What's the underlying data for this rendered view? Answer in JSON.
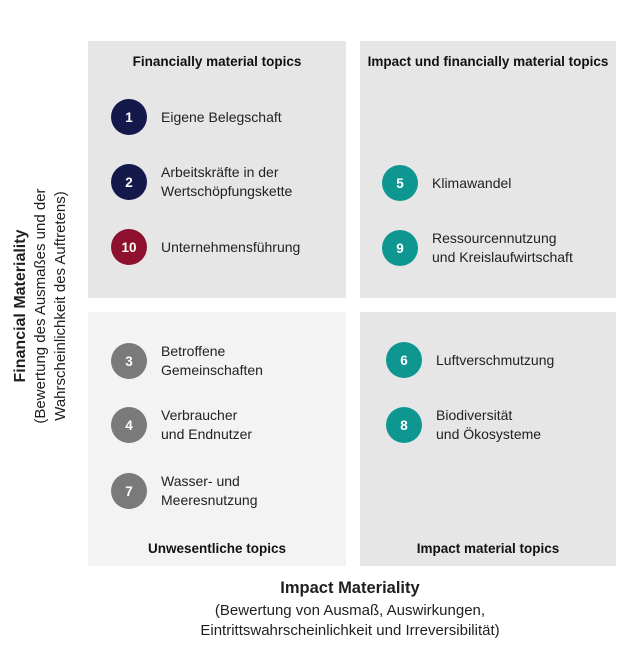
{
  "colors": {
    "navy": "#14184a",
    "crimson": "#8e1230",
    "teal": "#0e9690",
    "gray": "#7a7a7a",
    "quad_dark": "#e6e6e6",
    "quad_light": "#f3f3f3"
  },
  "y_axis": {
    "title": "Financial Materiality",
    "subtitle": "(Bewertung des Ausmaßes und der\nWahrscheinlichkeit des Auftretens)"
  },
  "x_axis": {
    "title": "Impact Materiality",
    "subtitle": "(Bewertung von Ausmaß, Auswirkungen,\nEintrittswahrscheinlichkeit und Irreversibilität)"
  },
  "quadrants": {
    "top_left": {
      "title": "Financially material topics",
      "items": [
        {
          "number": "1",
          "label": "Eigene Belegschaft",
          "color": "#14184a"
        },
        {
          "number": "2",
          "label": "Arbeitskräfte in der\nWertschöpfungskette",
          "color": "#14184a"
        },
        {
          "number": "10",
          "label": "Unternehmensführung",
          "color": "#8e1230"
        }
      ]
    },
    "top_right": {
      "title": "Impact und financially\nmaterial topics",
      "items": [
        {
          "number": "5",
          "label": "Klimawandel",
          "color": "#0e9690"
        },
        {
          "number": "9",
          "label": "Ressourcennutzung\nund Kreislaufwirtschaft",
          "color": "#0e9690"
        }
      ]
    },
    "bottom_left": {
      "title": "Unwesentliche topics",
      "items": [
        {
          "number": "3",
          "label": "Betroffene\nGemeinschaften",
          "color": "#7a7a7a"
        },
        {
          "number": "4",
          "label": "Verbraucher\nund Endnutzer",
          "color": "#7a7a7a"
        },
        {
          "number": "7",
          "label": "Wasser- und\nMeeresnutzung",
          "color": "#7a7a7a"
        }
      ]
    },
    "bottom_right": {
      "title": "Impact material topics",
      "items": [
        {
          "number": "6",
          "label": "Luftverschmutzung",
          "color": "#0e9690"
        },
        {
          "number": "8",
          "label": "Biodiversität\nund Ökosysteme",
          "color": "#0e9690"
        }
      ]
    }
  }
}
